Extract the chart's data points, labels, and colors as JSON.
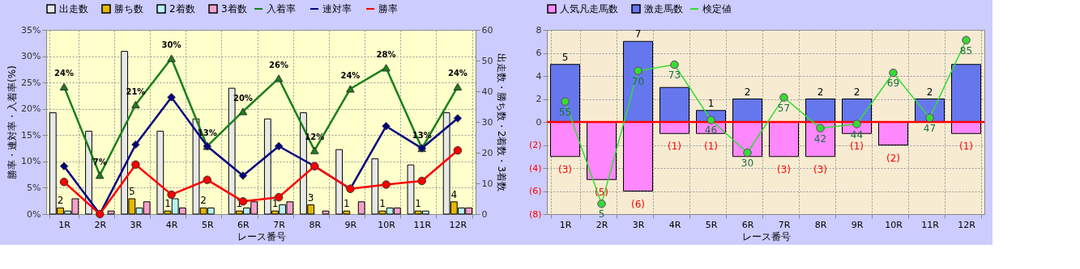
{
  "chart_data": [
    {
      "type": "bar",
      "categories": [
        "1R",
        "2R",
        "3R",
        "4R",
        "5R",
        "6R",
        "7R",
        "8R",
        "9R",
        "10R",
        "11R",
        "12R"
      ],
      "xlabel": "レース番号",
      "ylabel": "勝率・連対率・入着率(%)",
      "y2label": "出走数・勝ち数・2着数・3着数",
      "ylim": [
        0,
        35
      ],
      "yticks": [
        {
          "value": 0,
          "label": "0%"
        },
        {
          "value": 5,
          "label": "5%"
        },
        {
          "value": 10,
          "label": "10%"
        },
        {
          "value": 15,
          "label": "15%"
        },
        {
          "value": 20,
          "label": "20%"
        },
        {
          "value": 25,
          "label": "25%"
        },
        {
          "value": 30,
          "label": "30%"
        },
        {
          "value": 35,
          "label": "35%"
        }
      ],
      "y2lim": [
        0,
        60
      ],
      "y2ticks": [
        0,
        10,
        20,
        30,
        40,
        50,
        60
      ],
      "grid": true,
      "legend": "top",
      "series": [
        {
          "name": "出走数",
          "axis": "y2",
          "color": "#e8e8e8",
          "values": [
            33,
            27,
            53,
            27,
            31,
            41,
            31,
            33,
            21,
            18,
            16,
            33
          ]
        },
        {
          "name": "勝ち数",
          "axis": "y2",
          "color": "#e6b800",
          "values": [
            2,
            0,
            5,
            1,
            2,
            1,
            1,
            3,
            1,
            1,
            1,
            4
          ],
          "value_labels": [
            "2",
            null,
            "5",
            "1",
            "2",
            "1",
            "1",
            "3",
            "1",
            "1",
            "1",
            "4"
          ]
        },
        {
          "name": "2着数",
          "axis": "y2",
          "color": "#b8f4f4",
          "values": [
            1,
            0,
            2,
            5,
            2,
            2,
            3,
            0,
            0,
            2,
            1,
            2
          ]
        },
        {
          "name": "3着数",
          "axis": "y2",
          "color": "#f4a0cc",
          "values": [
            5,
            1,
            4,
            2,
            0,
            4,
            4,
            1,
            4,
            2,
            0,
            2
          ]
        },
        {
          "name": "入着率",
          "type": "line",
          "color": "#1a7f1a",
          "marker": "triangle",
          "line_style": "solid",
          "values": [
            24.2,
            7.4,
            20.8,
            29.6,
            12.9,
            19.5,
            25.8,
            12.1,
            23.8,
            27.8,
            12.5,
            24.2
          ],
          "value_labels": [
            "24%",
            "7%",
            "21%",
            "30%",
            "13%",
            "20%",
            "26%",
            "12%",
            "24%",
            "28%",
            "13%",
            "24%"
          ]
        },
        {
          "name": "連対率",
          "type": "line",
          "color": "#000080",
          "marker": "diamond",
          "line_style": "solid",
          "values": [
            9.1,
            0,
            13.2,
            22.2,
            12.9,
            7.3,
            12.9,
            9.1,
            4.8,
            16.7,
            12.5,
            18.2
          ]
        },
        {
          "name": "勝率",
          "type": "line",
          "color": "#ff0000",
          "marker": "circle",
          "line_style": "solid",
          "values": [
            6.1,
            0,
            9.4,
            3.7,
            6.5,
            2.4,
            3.2,
            9.1,
            4.8,
            5.6,
            6.3,
            12.1
          ]
        }
      ]
    },
    {
      "type": "bar",
      "stacked": true,
      "categories": [
        "1R",
        "2R",
        "3R",
        "4R",
        "5R",
        "6R",
        "7R",
        "8R",
        "9R",
        "10R",
        "11R",
        "12R"
      ],
      "xlabel": "レース番号",
      "ylim": [
        -8,
        8
      ],
      "yticks": [
        {
          "value": -8,
          "label": "(8)"
        },
        {
          "value": -6,
          "label": "(6)"
        },
        {
          "value": -4,
          "label": "(4)"
        },
        {
          "value": -2,
          "label": "(2)"
        },
        0,
        2,
        4,
        6,
        8
      ],
      "y2lim": [
        0,
        90
      ],
      "grid": true,
      "legend": "top",
      "ref_lines": [
        {
          "axis": "y",
          "value": 0,
          "color": "#ff0000"
        }
      ],
      "series": [
        {
          "name": "人気凡走馬数",
          "color": "#ff88ff",
          "values": [
            -3,
            -5,
            -6,
            -1,
            -1,
            -3,
            -3,
            -3,
            -1,
            -2,
            0,
            -1
          ],
          "value_labels": [
            "(3)",
            "(5)",
            "(6)",
            "(1)",
            "(1)",
            null,
            "(3)",
            "(3)",
            "(1)",
            "(2)",
            null,
            "(1)"
          ]
        },
        {
          "name": "激走馬数",
          "color": "#6677ee",
          "values": [
            5,
            0,
            7,
            3,
            1,
            2,
            0,
            2,
            2,
            0,
            2,
            5
          ],
          "value_labels": [
            "5",
            null,
            "7",
            null,
            "1",
            "2",
            null,
            "2",
            "2",
            null,
            "2",
            null
          ]
        },
        {
          "name": "検定値",
          "type": "line",
          "axis": "y2",
          "color": "#33dd33",
          "marker": "circle",
          "line_style": "solid",
          "values": [
            55,
            5,
            70,
            73,
            46,
            30,
            57,
            42,
            44,
            69,
            47,
            85
          ],
          "value_labels": [
            "55",
            "5",
            "70",
            "73",
            "46",
            "30",
            "57",
            "42",
            "44",
            "69",
            "47",
            "85"
          ]
        }
      ]
    }
  ]
}
